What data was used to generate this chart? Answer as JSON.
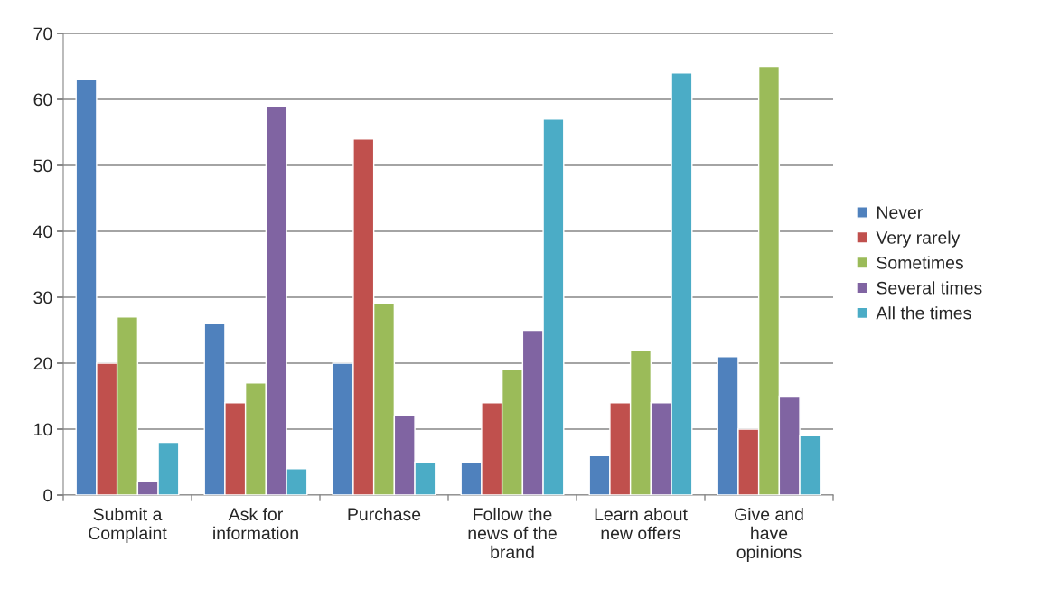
{
  "chart_data": {
    "type": "bar",
    "categories": [
      "Submit a Complaint",
      "Ask for information",
      "Purchase",
      "Follow the news of the brand",
      "Learn about new offers",
      "Give and have opinions"
    ],
    "series": [
      {
        "name": "Never",
        "color": "#4f81bd",
        "values": [
          63,
          26,
          20,
          5,
          6,
          21
        ]
      },
      {
        "name": "Very rarely",
        "color": "#c0504d",
        "values": [
          20,
          14,
          54,
          14,
          14,
          10
        ]
      },
      {
        "name": "Sometimes",
        "color": "#9bbb59",
        "values": [
          27,
          17,
          29,
          19,
          22,
          65
        ]
      },
      {
        "name": "Several times",
        "color": "#8064a2",
        "values": [
          2,
          59,
          12,
          25,
          14,
          15
        ]
      },
      {
        "name": "All the times",
        "color": "#4bacc6",
        "values": [
          8,
          4,
          5,
          57,
          64,
          9
        ]
      }
    ],
    "ylim": [
      0,
      70
    ],
    "yticks": [
      0,
      10,
      20,
      30,
      40,
      50,
      60,
      70
    ],
    "grid": "y",
    "legend": "right"
  }
}
